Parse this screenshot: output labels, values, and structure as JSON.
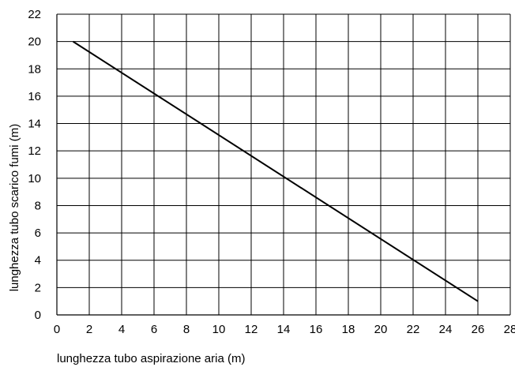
{
  "chart_data": {
    "type": "line",
    "xlabel": "lunghezza tubo aspirazione aria (m)",
    "ylabel": "lunghezza tubo scarico fumi (m)",
    "xlim": [
      0,
      28
    ],
    "ylim": [
      0,
      22
    ],
    "x_ticks": [
      0,
      2,
      4,
      6,
      8,
      10,
      12,
      14,
      16,
      18,
      20,
      22,
      24,
      26,
      28
    ],
    "y_ticks": [
      0,
      2,
      4,
      6,
      8,
      10,
      12,
      14,
      16,
      18,
      20,
      22
    ],
    "grid": true,
    "series": [
      {
        "color": "#000000",
        "x": [
          1,
          26
        ],
        "y": [
          20,
          1
        ]
      }
    ]
  }
}
